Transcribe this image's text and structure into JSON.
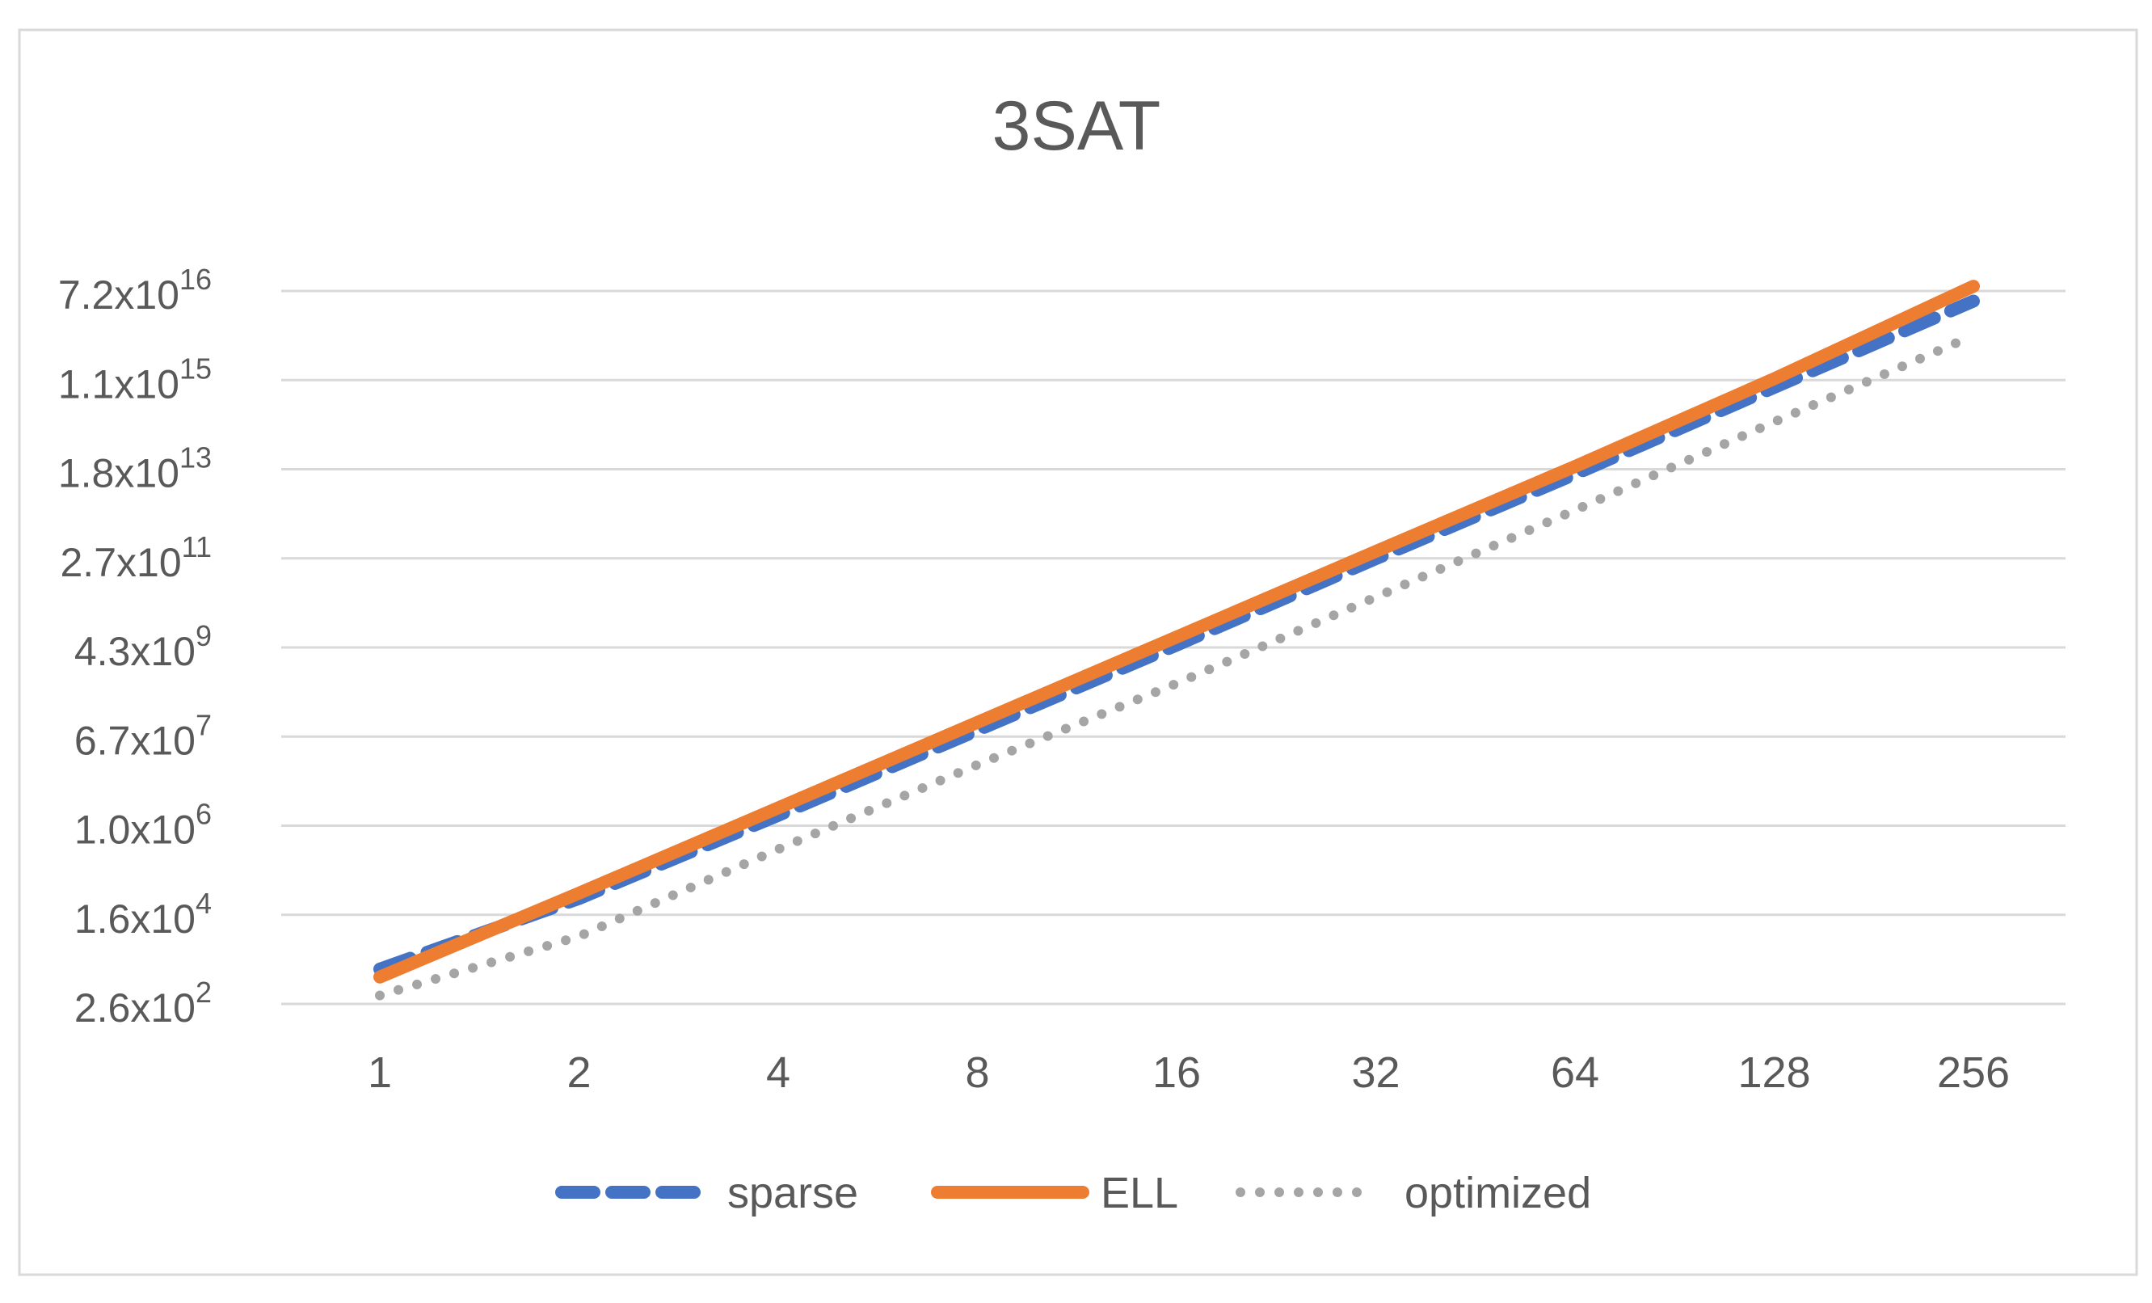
{
  "chart_data": {
    "type": "line",
    "title": "3SAT",
    "xlabel": "",
    "ylabel": "",
    "categories": [
      "1",
      "2",
      "4",
      "8",
      "16",
      "32",
      "64",
      "128",
      "256"
    ],
    "y_scale": "log",
    "ylim": [
      256,
      72057594037927936
    ],
    "y_ticks": [
      {
        "value": 256,
        "mantissa": "2.6x10",
        "exponent": "2"
      },
      {
        "value": 16384,
        "mantissa": "1.6x10",
        "exponent": "4"
      },
      {
        "value": 1048576,
        "mantissa": "1.0x10",
        "exponent": "6"
      },
      {
        "value": 67108864,
        "mantissa": "6.7x10",
        "exponent": "7"
      },
      {
        "value": 4294967296,
        "mantissa": "4.3x10",
        "exponent": "9"
      },
      {
        "value": 274877906944,
        "mantissa": "2.7x10",
        "exponent": "11"
      },
      {
        "value": 17592186044416,
        "mantissa": "1.8x10",
        "exponent": "13"
      },
      {
        "value": 1125899906842624,
        "mantissa": "1.1x10",
        "exponent": "15"
      },
      {
        "value": 72057594037927936,
        "mantissa": "7.2x10",
        "exponent": "16"
      }
    ],
    "grid": true,
    "legend_position": "bottom",
    "series": [
      {
        "name": "sparse",
        "color": "#4472C4",
        "style": "dashed",
        "values": [
          1300,
          35000,
          1700000,
          90000000,
          4800000000,
          270000000000.0,
          14000000000000.0,
          800000000000000.0,
          4.5e+16
        ]
      },
      {
        "name": "ELL",
        "color": "#ED7D31",
        "style": "solid",
        "values": [
          900,
          45000,
          2400000,
          130000000,
          7000000000,
          380000000000.0,
          20000000000000.0,
          1200000000000000.0,
          9e+16
        ]
      },
      {
        "name": "optimized",
        "color": "#A5A5A5",
        "style": "dotted",
        "values": [
          380,
          6000,
          350000,
          18000000,
          800000000,
          45000000000.0,
          2600000000000.0,
          160000000000000.0,
          9000000000000000.0
        ]
      }
    ]
  }
}
